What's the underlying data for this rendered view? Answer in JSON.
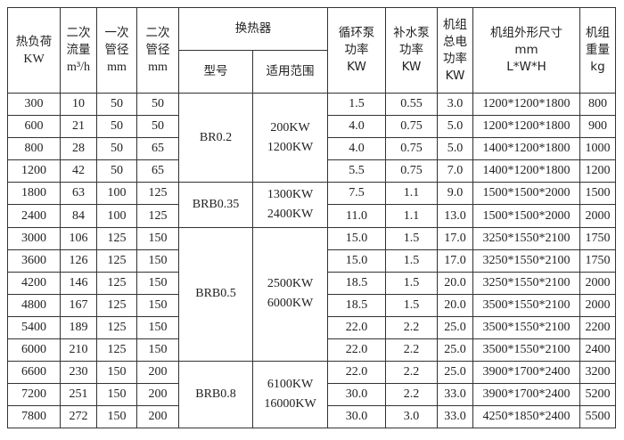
{
  "headers": {
    "heat_load": [
      "热负荷",
      "KW"
    ],
    "secondary_flow": [
      "二次",
      "流量",
      "m³/h"
    ],
    "primary_pipe": [
      "一次",
      "管径",
      "mm"
    ],
    "secondary_pipe": [
      "二次",
      "管径",
      "mm"
    ],
    "exchanger": "换热器",
    "model": "型号",
    "range": "适用范围",
    "circ_pump": [
      "循环泵",
      "功率",
      "KW"
    ],
    "makeup_pump": [
      "补水泵",
      "功率",
      "KW"
    ],
    "total_power": [
      "机组",
      "总电",
      "功率",
      "KW"
    ],
    "dimensions": [
      "机组外形尺寸",
      "mm",
      "L*W*H"
    ],
    "weight": [
      "机组",
      "重量",
      "kg"
    ]
  },
  "groups": [
    {
      "model": "BR0.2",
      "range": [
        "200KW",
        "1200KW"
      ],
      "span": 4
    },
    {
      "model": "BRB0.35",
      "range": [
        "1300KW",
        "2400KW"
      ],
      "span": 2
    },
    {
      "model": "BRB0.5",
      "range": [
        "2500KW",
        "6000KW"
      ],
      "span": 6
    },
    {
      "model": "BRB0.8",
      "range": [
        "6100KW",
        "16000KW"
      ],
      "span": 3
    }
  ],
  "rows": [
    [
      "300",
      "10",
      "50",
      "50",
      "1.5",
      "0.55",
      "3.0",
      "1200*1200*1800",
      "800"
    ],
    [
      "600",
      "21",
      "50",
      "50",
      "4.0",
      "0.75",
      "5.0",
      "1200*1200*1800",
      "900"
    ],
    [
      "800",
      "28",
      "50",
      "65",
      "4.0",
      "0.75",
      "5.0",
      "1400*1200*1800",
      "1000"
    ],
    [
      "1200",
      "42",
      "50",
      "65",
      "5.5",
      "0.75",
      "7.0",
      "1400*1200*1800",
      "1200"
    ],
    [
      "1800",
      "63",
      "100",
      "125",
      "7.5",
      "1.1",
      "9.0",
      "1500*1500*2000",
      "1500"
    ],
    [
      "2400",
      "84",
      "100",
      "125",
      "11.0",
      "1.1",
      "13.0",
      "1500*1500*2000",
      "2000"
    ],
    [
      "3000",
      "106",
      "125",
      "150",
      "15.0",
      "1.5",
      "17.0",
      "3250*1550*2100",
      "1750"
    ],
    [
      "3600",
      "126",
      "125",
      "150",
      "15.0",
      "1.5",
      "17.0",
      "3250*1550*2100",
      "1750"
    ],
    [
      "4200",
      "146",
      "125",
      "150",
      "18.5",
      "1.5",
      "20.0",
      "3250*1550*2100",
      "2000"
    ],
    [
      "4800",
      "167",
      "125",
      "150",
      "18.5",
      "1.5",
      "20.0",
      "3500*1550*2100",
      "2000"
    ],
    [
      "5400",
      "189",
      "125",
      "150",
      "22.0",
      "2.2",
      "25.0",
      "3500*1550*2100",
      "2200"
    ],
    [
      "6000",
      "210",
      "125",
      "150",
      "22.0",
      "2.2",
      "25.0",
      "3500*1550*2100",
      "2400"
    ],
    [
      "6600",
      "230",
      "150",
      "200",
      "22.0",
      "2.2",
      "25.0",
      "3900*1700*2400",
      "3200"
    ],
    [
      "7200",
      "251",
      "150",
      "200",
      "30.0",
      "2.2",
      "33.0",
      "3900*1700*2400",
      "5200"
    ],
    [
      "7800",
      "272",
      "150",
      "200",
      "30.0",
      "3.0",
      "33.0",
      "4250*1850*2400",
      "5500"
    ]
  ]
}
